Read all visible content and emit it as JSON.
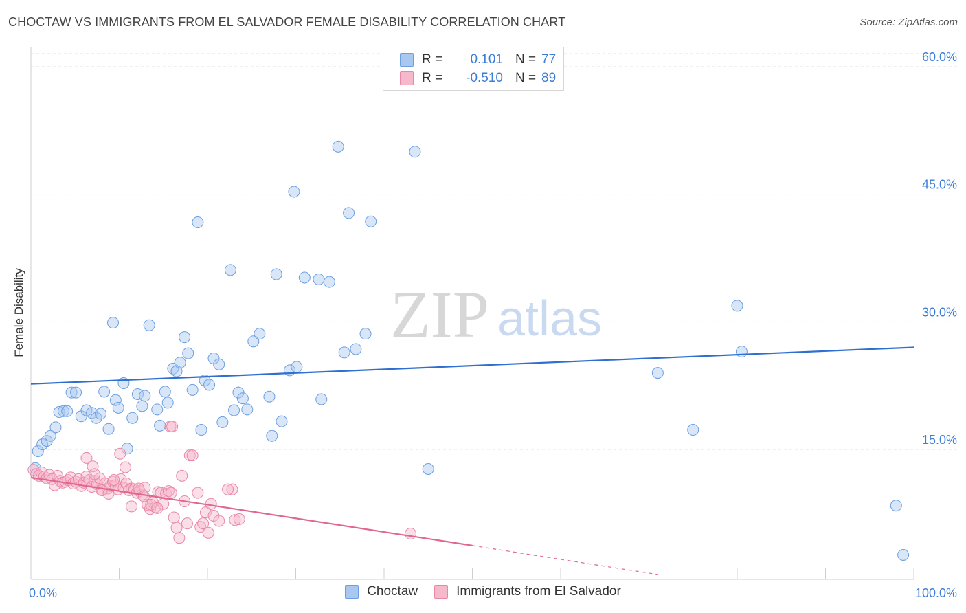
{
  "header": {
    "title": "CHOCTAW VS IMMIGRANTS FROM EL SALVADOR FEMALE DISABILITY CORRELATION CHART",
    "source": "Source: ZipAtlas.com"
  },
  "legend": {
    "items": [
      {
        "r_label": "R =",
        "r_value": "0.101",
        "n_label": "N =",
        "n_value": "77",
        "color": "#a9c8f0",
        "border": "#6b9fe0"
      },
      {
        "r_label": "R =",
        "r_value": "-0.510",
        "n_label": "N =",
        "n_value": "89",
        "color": "#f6b9cc",
        "border": "#e887a6"
      }
    ]
  },
  "watermark": {
    "part1": "ZIP",
    "part2": "atlas"
  },
  "chart_data": {
    "type": "scatter",
    "title": "CHOCTAW VS IMMIGRANTS FROM EL SALVADOR FEMALE DISABILITY CORRELATION CHART",
    "xlabel": "",
    "ylabel": "Female Disability",
    "xlim": [
      0,
      100
    ],
    "ylim": [
      0,
      63
    ],
    "x_tick_labels": [
      "0.0%",
      "100.0%"
    ],
    "y_ticks": [
      15,
      30,
      45,
      60
    ],
    "y_tick_labels": [
      "15.0%",
      "30.0%",
      "45.0%",
      "60.0%"
    ],
    "series": [
      {
        "name": "Choctaw",
        "color": "#6b9fe0",
        "fill": "rgba(169,200,240,0.45)",
        "trend": {
          "x0": 0,
          "y0": 22.7,
          "x1": 100,
          "y1": 27.0
        },
        "points": [
          [
            0.5,
            12.8
          ],
          [
            0.8,
            14.8
          ],
          [
            1.3,
            15.6
          ],
          [
            1.8,
            16.0
          ],
          [
            2.2,
            16.6
          ],
          [
            2.8,
            17.6
          ],
          [
            3.2,
            19.4
          ],
          [
            3.7,
            19.5
          ],
          [
            4.1,
            19.5
          ],
          [
            4.6,
            21.7
          ],
          [
            5.1,
            21.7
          ],
          [
            5.7,
            18.9
          ],
          [
            6.3,
            19.6
          ],
          [
            6.9,
            19.3
          ],
          [
            7.4,
            18.7
          ],
          [
            7.9,
            19.2
          ],
          [
            8.3,
            21.8
          ],
          [
            8.8,
            17.4
          ],
          [
            9.3,
            29.9
          ],
          [
            9.6,
            20.8
          ],
          [
            9.9,
            19.9
          ],
          [
            10.5,
            22.8
          ],
          [
            10.9,
            15.1
          ],
          [
            11.5,
            18.7
          ],
          [
            12.1,
            21.5
          ],
          [
            12.6,
            20.1
          ],
          [
            12.9,
            21.3
          ],
          [
            13.4,
            29.6
          ],
          [
            14.3,
            19.7
          ],
          [
            14.6,
            17.8
          ],
          [
            15.2,
            21.8
          ],
          [
            15.5,
            20.5
          ],
          [
            16.1,
            24.5
          ],
          [
            16.5,
            24.2
          ],
          [
            16.9,
            25.2
          ],
          [
            17.4,
            28.2
          ],
          [
            17.8,
            26.3
          ],
          [
            18.3,
            22.0
          ],
          [
            18.9,
            41.7
          ],
          [
            19.3,
            17.3
          ],
          [
            19.7,
            23.1
          ],
          [
            20.2,
            22.6
          ],
          [
            20.7,
            25.7
          ],
          [
            21.3,
            25.0
          ],
          [
            21.7,
            18.2
          ],
          [
            22.6,
            36.1
          ],
          [
            23.0,
            19.6
          ],
          [
            23.5,
            21.7
          ],
          [
            24.0,
            21.0
          ],
          [
            24.5,
            19.7
          ],
          [
            25.2,
            27.7
          ],
          [
            25.9,
            28.6
          ],
          [
            27.0,
            21.2
          ],
          [
            27.3,
            16.6
          ],
          [
            27.8,
            35.6
          ],
          [
            28.4,
            18.3
          ],
          [
            29.3,
            24.3
          ],
          [
            29.8,
            45.3
          ],
          [
            30.1,
            24.7
          ],
          [
            31.0,
            35.2
          ],
          [
            32.6,
            35.0
          ],
          [
            32.9,
            20.9
          ],
          [
            33.8,
            34.7
          ],
          [
            34.8,
            50.6
          ],
          [
            35.5,
            26.4
          ],
          [
            36.0,
            42.8
          ],
          [
            36.8,
            26.8
          ],
          [
            37.9,
            28.6
          ],
          [
            38.5,
            41.8
          ],
          [
            43.5,
            50.0
          ],
          [
            45.0,
            12.7
          ],
          [
            71.0,
            24.0
          ],
          [
            75.0,
            17.3
          ],
          [
            80.0,
            31.9
          ],
          [
            80.5,
            26.5
          ],
          [
            98.0,
            8.4
          ],
          [
            98.8,
            2.6
          ]
        ]
      },
      {
        "name": "Immigrants from El Salvador",
        "color": "#e887a6",
        "fill": "rgba(246,185,204,0.45)",
        "trend": {
          "x0": 0,
          "y0": 11.7,
          "x1": 50,
          "y1": 3.7
        },
        "trend_dashed": {
          "x0": 50,
          "y0": 3.7,
          "x1": 71,
          "y1": 0.3
        },
        "points": [
          [
            0.3,
            12.6
          ],
          [
            0.6,
            12.1
          ],
          [
            0.9,
            11.9
          ],
          [
            1.2,
            12.3
          ],
          [
            1.5,
            11.8
          ],
          [
            1.8,
            11.6
          ],
          [
            2.1,
            12.0
          ],
          [
            2.4,
            11.5
          ],
          [
            2.7,
            10.8
          ],
          [
            3.0,
            11.9
          ],
          [
            3.3,
            11.3
          ],
          [
            3.6,
            11.1
          ],
          [
            3.9,
            11.2
          ],
          [
            4.2,
            11.4
          ],
          [
            4.5,
            11.7
          ],
          [
            4.8,
            11.0
          ],
          [
            5.1,
            11.2
          ],
          [
            5.4,
            11.5
          ],
          [
            5.7,
            10.7
          ],
          [
            6.0,
            11.1
          ],
          [
            6.3,
            11.8
          ],
          [
            6.6,
            11.4
          ],
          [
            6.9,
            10.6
          ],
          [
            7.2,
            11.3
          ],
          [
            7.5,
            10.9
          ],
          [
            7.8,
            11.6
          ],
          [
            8.1,
            10.2
          ],
          [
            8.4,
            11.0
          ],
          [
            8.7,
            10.4
          ],
          [
            9.0,
            10.7
          ],
          [
            9.3,
            11.2
          ],
          [
            9.6,
            10.8
          ],
          [
            9.9,
            10.3
          ],
          [
            10.2,
            11.5
          ],
          [
            10.5,
            10.5
          ],
          [
            10.8,
            11.0
          ],
          [
            11.1,
            10.2
          ],
          [
            11.4,
            10.4
          ],
          [
            11.7,
            10.3
          ],
          [
            12.0,
            9.9
          ],
          [
            12.3,
            10.1
          ],
          [
            12.6,
            9.7
          ],
          [
            12.9,
            10.5
          ],
          [
            13.2,
            8.5
          ],
          [
            13.5,
            8.0
          ],
          [
            13.8,
            8.8
          ],
          [
            14.1,
            8.2
          ],
          [
            14.4,
            10.0
          ],
          [
            14.7,
            9.9
          ],
          [
            15.0,
            8.6
          ],
          [
            15.3,
            9.8
          ],
          [
            15.6,
            10.1
          ],
          [
            15.9,
            9.9
          ],
          [
            16.2,
            7.0
          ],
          [
            16.5,
            5.8
          ],
          [
            16.8,
            4.6
          ],
          [
            17.1,
            11.9
          ],
          [
            17.4,
            8.9
          ],
          [
            17.7,
            6.3
          ],
          [
            18.0,
            14.3
          ],
          [
            18.3,
            14.3
          ],
          [
            18.9,
            9.9
          ],
          [
            19.2,
            5.9
          ],
          [
            19.5,
            6.3
          ],
          [
            19.8,
            7.6
          ],
          [
            20.1,
            5.2
          ],
          [
            20.4,
            8.6
          ],
          [
            20.7,
            7.2
          ],
          [
            21.3,
            6.6
          ],
          [
            22.8,
            10.3
          ],
          [
            23.1,
            6.7
          ],
          [
            6.3,
            14.0
          ],
          [
            7.0,
            13.0
          ],
          [
            7.2,
            12.1
          ],
          [
            8.0,
            10.2
          ],
          [
            8.8,
            9.8
          ],
          [
            9.4,
            11.4
          ],
          [
            10.1,
            14.5
          ],
          [
            10.7,
            12.9
          ],
          [
            11.4,
            8.3
          ],
          [
            12.2,
            10.4
          ],
          [
            12.8,
            9.5
          ],
          [
            13.6,
            8.5
          ],
          [
            14.3,
            8.1
          ],
          [
            15.8,
            17.7
          ],
          [
            16.0,
            17.7
          ],
          [
            22.3,
            10.3
          ],
          [
            23.6,
            6.8
          ],
          [
            43.0,
            5.1
          ]
        ]
      }
    ]
  },
  "bottom_legend": {
    "items": [
      {
        "label": "Choctaw",
        "color": "#a9c8f0",
        "border": "#6b9fe0"
      },
      {
        "label": "Immigrants from El Salvador",
        "color": "#f6b9cc",
        "border": "#e887a6"
      }
    ]
  }
}
